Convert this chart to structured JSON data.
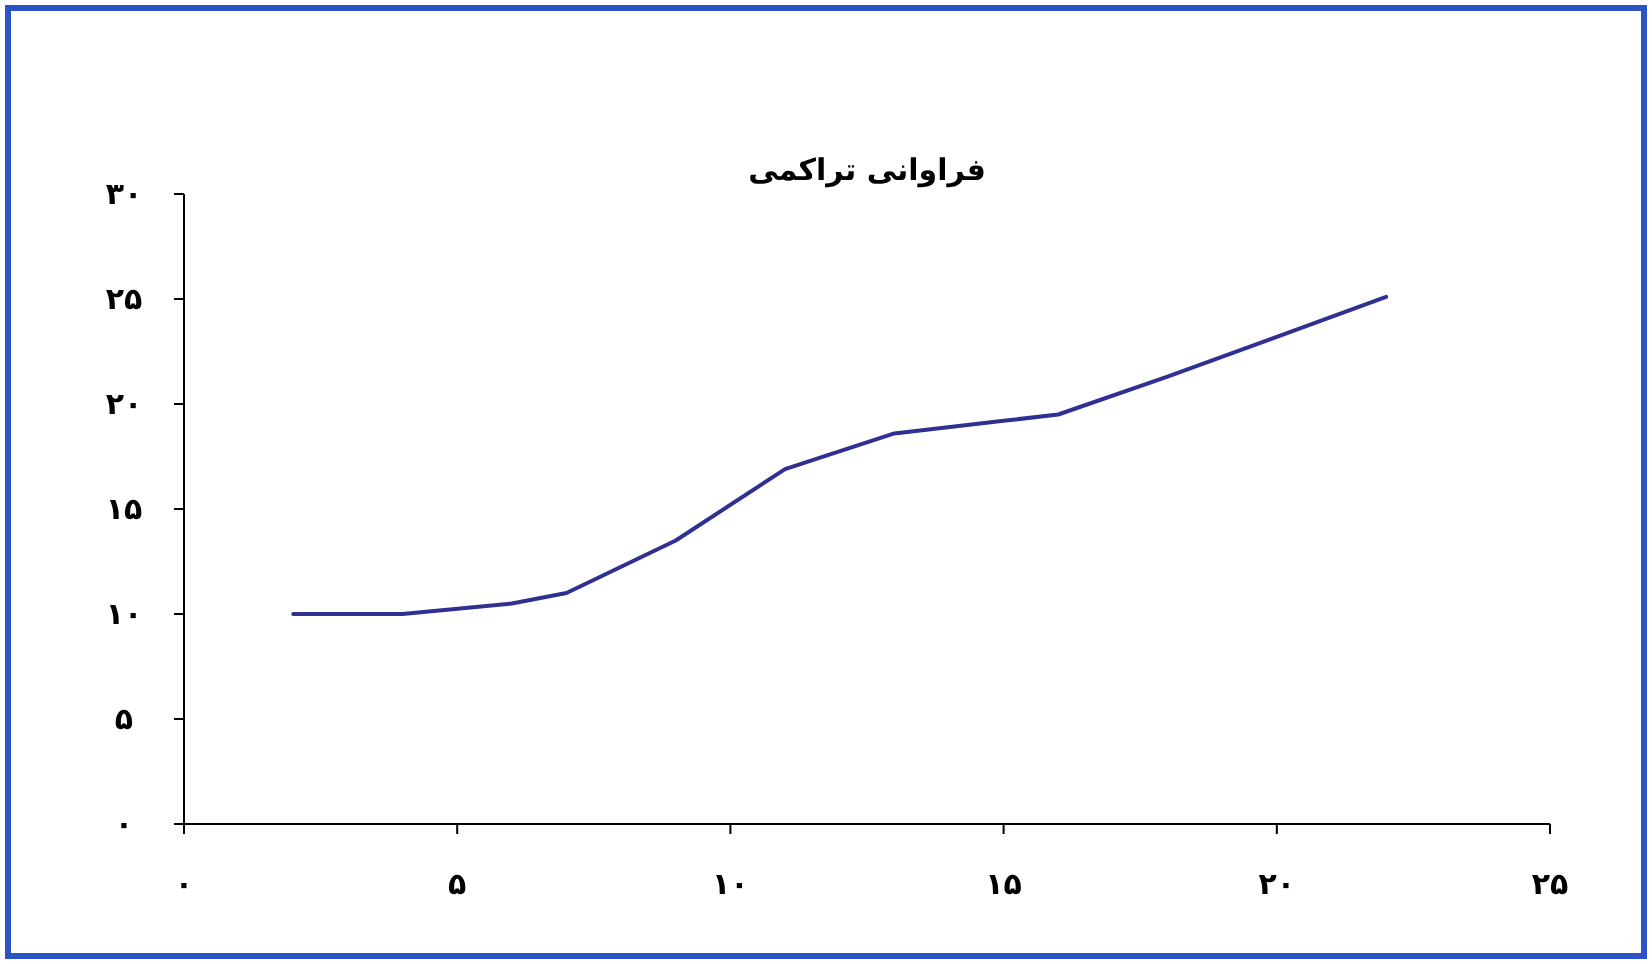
{
  "chart_data": {
    "type": "line",
    "title": "فراوانی تراکمی",
    "x": [
      2,
      4,
      6,
      7,
      9,
      11,
      13,
      15,
      16,
      18,
      20,
      22
    ],
    "series": [
      {
        "color": "#2e3192",
        "values": [
          10,
          10,
          10.5,
          11,
          13.5,
          16.9,
          18.6,
          19.2,
          19.5,
          21.3,
          23.2,
          25.1
        ]
      }
    ],
    "xlim": [
      0,
      25
    ],
    "ylim": [
      0,
      30
    ],
    "xticks": [
      {
        "value": 0,
        "label": "۰"
      },
      {
        "value": 5,
        "label": "۵"
      },
      {
        "value": 10,
        "label": "۱۰"
      },
      {
        "value": 15,
        "label": "۱۵"
      },
      {
        "value": 20,
        "label": "۲۰"
      },
      {
        "value": 25,
        "label": "۲۵"
      }
    ],
    "yticks": [
      {
        "value": 0,
        "label": "۰"
      },
      {
        "value": 5,
        "label": "۵"
      },
      {
        "value": 10,
        "label": "۱۰"
      },
      {
        "value": 15,
        "label": "۱۵"
      },
      {
        "value": 20,
        "label": "۲۰"
      },
      {
        "value": 25,
        "label": "۲۵"
      },
      {
        "value": 30,
        "label": "۳۰"
      }
    ],
    "grid": false,
    "marker": "none",
    "line_style": "solid"
  }
}
